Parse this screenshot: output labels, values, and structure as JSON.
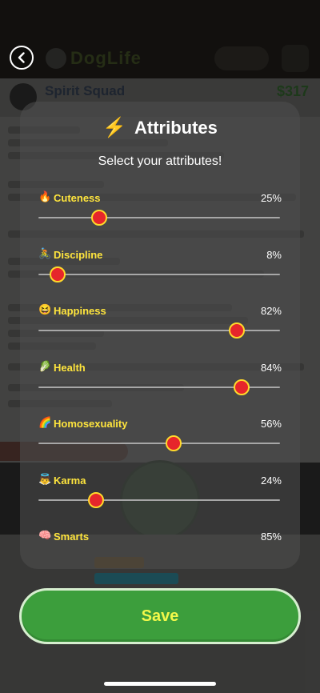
{
  "modal": {
    "title": "Attributes",
    "subtitle": "Select your attributes!",
    "save_label": "Save"
  },
  "attributes": [
    {
      "label": "Cuteness",
      "value": "25%",
      "level": 0.25,
      "icon": "fire-icon"
    },
    {
      "label": "Discipline",
      "value": "8%",
      "level": 0.08,
      "icon": "cyclist-icon"
    },
    {
      "label": "Happiness",
      "value": "82%",
      "level": 0.82,
      "icon": "grinning-face-icon"
    },
    {
      "label": "Health",
      "value": "84%",
      "level": 0.84,
      "icon": "leafy-greens-icon"
    },
    {
      "label": "Homosexuality",
      "value": "56%",
      "level": 0.56,
      "icon": "rainbow-icon"
    },
    {
      "label": "Karma",
      "value": "24%",
      "level": 0.24,
      "icon": "angel-icon"
    },
    {
      "label": "Smarts",
      "value": "85%",
      "level": 0.85,
      "icon": "brain-icon"
    }
  ],
  "colors": {
    "label": "#ffe53d",
    "thumb_fill": "#e6262b",
    "thumb_ring": "#ffd92b",
    "save_button": "#3c9e3c",
    "save_text": "#f2f84a"
  }
}
